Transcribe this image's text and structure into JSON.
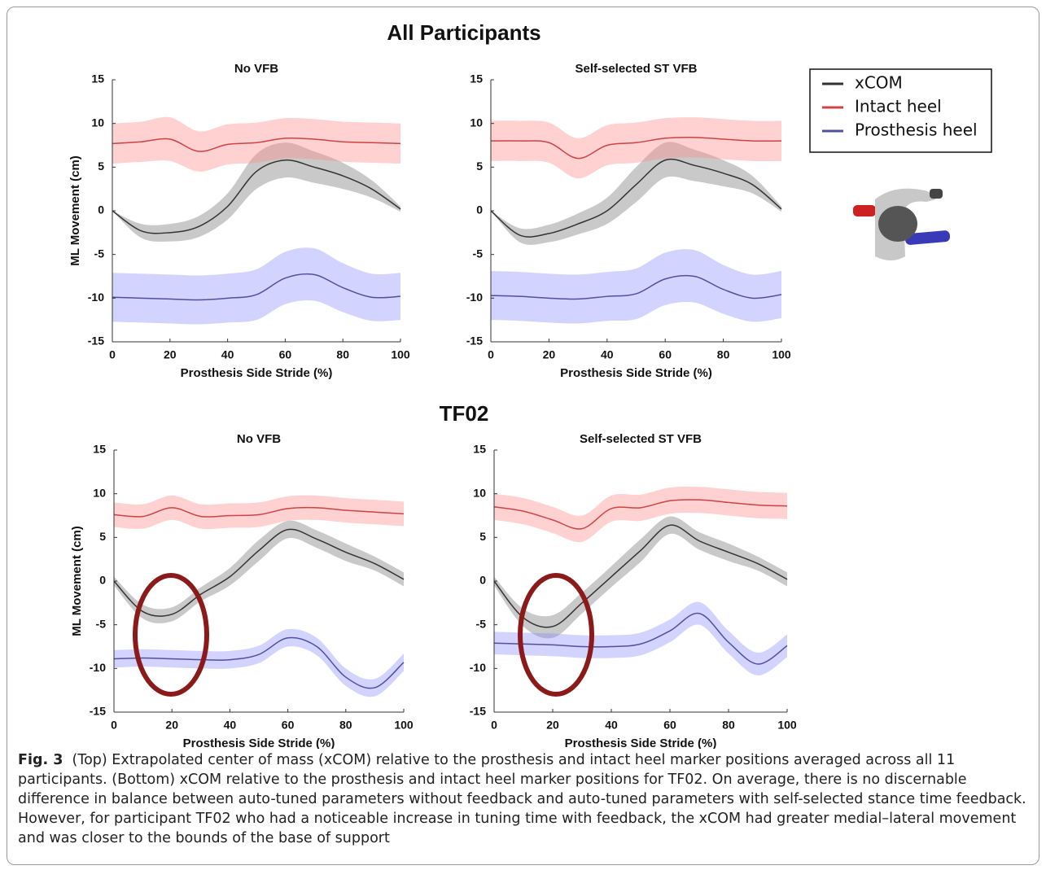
{
  "panel_titles": [
    "All Participants",
    "TF02"
  ],
  "caption": {
    "label": "Fig. 3",
    "text": "(Top) Extrapolated center of mass (xCOM) relative to the prosthesis and intact heel marker positions averaged across all 11 participants. (Bottom) xCOM relative to the prosthesis and intact heel marker positions for TF02. On average, there is no discernable difference in balance between auto-tuned parameters without feedback and auto-tuned parameters with self-selected stance time feedback. However, for participant TF02 who had a noticeable increase in tuning time with feedback, the xCOM had greater medial–lateral movement and was closer to the bounds of the base of support"
  },
  "chart_data": [
    {
      "type": "line",
      "title": "No VFB",
      "xlabel": "Prosthesis Side Stride (%)",
      "ylabel": "ML Movement (cm)",
      "x": [
        0,
        10,
        20,
        30,
        40,
        50,
        60,
        70,
        80,
        90,
        100
      ],
      "xlim": [
        0,
        100
      ],
      "xticks": [
        0,
        20,
        40,
        60,
        80,
        100
      ],
      "ylim": [
        -15,
        15
      ],
      "yticks": [
        -15,
        -10,
        -5,
        0,
        5,
        10,
        15
      ],
      "series": [
        {
          "name": "xCOM",
          "color": "#333333",
          "band_color": "rgba(120,120,120,0.4)",
          "values": [
            0,
            -2.3,
            -2.5,
            -1.8,
            0.5,
            4.5,
            5.8,
            5,
            4,
            2.5,
            0.2
          ],
          "spread": [
            0,
            0.8,
            1,
            1.2,
            1.5,
            2,
            2,
            1.8,
            1.5,
            1,
            0.3
          ]
        },
        {
          "name": "Intact heel",
          "color": "#cc4444",
          "band_color": "rgba(255,140,140,0.4)",
          "values": [
            7.7,
            7.9,
            8.2,
            6.8,
            7.6,
            7.8,
            8.3,
            8.2,
            7.9,
            7.8,
            7.7
          ],
          "spread": [
            2.3,
            2.3,
            2.5,
            2.3,
            2.3,
            2.3,
            2.3,
            2.3,
            2.3,
            2.3,
            2.3
          ]
        },
        {
          "name": "Prosthesis heel",
          "color": "#5050a0",
          "band_color": "rgba(130,130,255,0.35)",
          "values": [
            -9.9,
            -10,
            -10.1,
            -10.2,
            -10,
            -9.6,
            -7.7,
            -7.3,
            -8.8,
            -9.9,
            -9.8
          ],
          "spread": [
            2.8,
            2.8,
            2.8,
            2.8,
            2.8,
            2.9,
            3,
            3,
            2.8,
            2.7,
            2.7
          ]
        }
      ]
    },
    {
      "type": "line",
      "title": "Self-selected ST VFB",
      "xlabel": "Prosthesis Side Stride (%)",
      "x": [
        0,
        10,
        20,
        30,
        40,
        50,
        60,
        70,
        80,
        90,
        100
      ],
      "xlim": [
        0,
        100
      ],
      "xticks": [
        0,
        20,
        40,
        60,
        80,
        100
      ],
      "ylim": [
        -15,
        15
      ],
      "yticks": [
        -15,
        -10,
        -5,
        0,
        5,
        10,
        15
      ],
      "series": [
        {
          "color": "#333333",
          "band_color": "rgba(120,120,120,0.4)",
          "values": [
            0,
            -2.8,
            -2.6,
            -1.5,
            0,
            3,
            5.8,
            5.2,
            4.3,
            3,
            0.2
          ],
          "spread": [
            0,
            0.8,
            1,
            1.2,
            1.5,
            2,
            2,
            1.8,
            1.5,
            1,
            0.3
          ]
        },
        {
          "color": "#cc4444",
          "band_color": "rgba(255,140,140,0.4)",
          "values": [
            8,
            8,
            7.8,
            6,
            7.5,
            7.8,
            8.3,
            8.4,
            8.2,
            8,
            8
          ],
          "spread": [
            2.3,
            2.3,
            2.3,
            2.3,
            2.3,
            2.3,
            2.3,
            2.3,
            2.3,
            2.3,
            2.3
          ]
        },
        {
          "color": "#5050a0",
          "band_color": "rgba(130,130,255,0.35)",
          "values": [
            -9.7,
            -9.8,
            -10,
            -10.1,
            -9.8,
            -9.5,
            -7.8,
            -7.5,
            -9,
            -10,
            -9.6
          ],
          "spread": [
            2.8,
            2.8,
            2.8,
            2.8,
            2.8,
            2.9,
            3,
            3,
            2.8,
            2.7,
            2.7
          ]
        }
      ]
    },
    {
      "type": "line",
      "title": "No VFB",
      "xlabel": "Prosthesis Side Stride (%)",
      "ylabel": "ML Movement (cm)",
      "x": [
        0,
        10,
        20,
        30,
        40,
        50,
        60,
        70,
        80,
        90,
        100
      ],
      "xlim": [
        0,
        100
      ],
      "xticks": [
        0,
        20,
        40,
        60,
        80,
        100
      ],
      "ylim": [
        -15,
        15
      ],
      "yticks": [
        -15,
        -10,
        -5,
        0,
        5,
        10,
        15
      ],
      "series": [
        {
          "color": "#333333",
          "band_color": "rgba(120,120,120,0.4)",
          "values": [
            0,
            -3.5,
            -3.8,
            -1.5,
            0.5,
            3.5,
            5.9,
            4.8,
            3.3,
            2,
            0.2
          ],
          "spread": [
            0.5,
            0.8,
            0.8,
            0.8,
            1,
            1.2,
            1,
            1,
            1,
            0.8,
            0.8
          ]
        },
        {
          "color": "#cc4444",
          "band_color": "rgba(255,140,140,0.4)",
          "values": [
            7.6,
            7.4,
            8.4,
            7.4,
            7.5,
            7.6,
            8.3,
            8.4,
            8.1,
            7.9,
            7.7
          ],
          "spread": [
            1.4,
            1.4,
            1.4,
            1.4,
            1.4,
            1.4,
            1.4,
            1.4,
            1.4,
            1.4,
            1.4
          ]
        },
        {
          "color": "#5050a0",
          "band_color": "rgba(130,130,255,0.35)",
          "values": [
            -8.9,
            -8.8,
            -8.9,
            -9,
            -9,
            -8.4,
            -6.5,
            -7.5,
            -11,
            -12.2,
            -9.3
          ],
          "spread": [
            1,
            1,
            1,
            1,
            1,
            1,
            1,
            1,
            1,
            1,
            1
          ]
        }
      ]
    },
    {
      "type": "line",
      "title": "Self-selected ST VFB",
      "xlabel": "Prosthesis Side Stride (%)",
      "x": [
        0,
        10,
        20,
        30,
        40,
        50,
        60,
        70,
        80,
        90,
        100
      ],
      "xlim": [
        0,
        100
      ],
      "xticks": [
        0,
        20,
        40,
        60,
        80,
        100
      ],
      "ylim": [
        -15,
        15
      ],
      "yticks": [
        -15,
        -10,
        -5,
        0,
        5,
        10,
        15
      ],
      "series": [
        {
          "color": "#333333",
          "band_color": "rgba(120,120,120,0.4)",
          "values": [
            0,
            -4.2,
            -5.2,
            -2.5,
            0.5,
            3.5,
            6.4,
            4.6,
            3.3,
            2,
            0.2
          ],
          "spread": [
            0.5,
            1,
            1.3,
            1.2,
            1.2,
            1.3,
            1,
            1,
            1,
            0.8,
            0.8
          ]
        },
        {
          "color": "#cc4444",
          "band_color": "rgba(255,140,140,0.4)",
          "values": [
            8.5,
            8,
            7,
            6,
            8.3,
            8.4,
            9.2,
            9.3,
            9,
            8.7,
            8.6
          ],
          "spread": [
            1.5,
            1.5,
            1.5,
            1.5,
            1.5,
            1.5,
            1.5,
            1.5,
            1.5,
            1.5,
            1.5
          ]
        },
        {
          "color": "#5050a0",
          "band_color": "rgba(130,130,255,0.35)",
          "values": [
            -7.1,
            -7.2,
            -7.3,
            -7.5,
            -7.5,
            -7.2,
            -5.7,
            -3.7,
            -7,
            -9.5,
            -7.4
          ],
          "spread": [
            1.3,
            1.3,
            1.3,
            1.3,
            1.3,
            1.3,
            1.3,
            1.3,
            1.3,
            1.3,
            1.3
          ]
        }
      ]
    }
  ]
}
